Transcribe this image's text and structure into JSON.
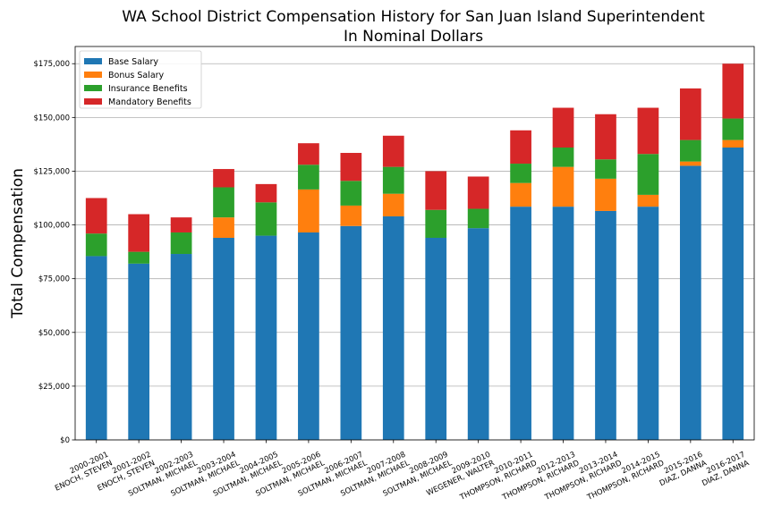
{
  "chart_data": {
    "type": "bar",
    "stacked": true,
    "title": "WA School District Compensation History for San Juan Island Superintendent",
    "subtitle": "In Nominal Dollars",
    "ylabel": "Total Compensation",
    "xlabel": "",
    "ylim": [
      0,
      183000
    ],
    "yticks": [
      0,
      25000,
      50000,
      75000,
      100000,
      125000,
      150000,
      175000
    ],
    "ytick_labels": [
      "$0",
      "$25,000",
      "$50,000",
      "$75,000",
      "$100,000",
      "$125,000",
      "$150,000",
      "$175,000"
    ],
    "grid": "horizontal",
    "legend_position": "top-left",
    "categories": [
      [
        "2000-2001",
        "ENOCH, STEVEN"
      ],
      [
        "2001-2002",
        "ENOCH, STEVEN"
      ],
      [
        "2002-2003",
        "SOLTMAN, MICHAEL"
      ],
      [
        "2003-2004",
        "SOLTMAN, MICHAEL"
      ],
      [
        "2004-2005",
        "SOLTMAN, MICHAEL"
      ],
      [
        "2005-2006",
        "SOLTMAN, MICHAEL"
      ],
      [
        "2006-2007",
        "SOLTMAN, MICHAEL"
      ],
      [
        "2007-2008",
        "SOLTMAN, MICHAEL"
      ],
      [
        "2008-2009",
        "SOLTMAN, MICHAEL"
      ],
      [
        "2009-2010",
        "WEGENER, WALTER"
      ],
      [
        "2010-2011",
        "THOMPSON, RICHARD"
      ],
      [
        "2012-2013",
        "THOMPSON, RICHARD"
      ],
      [
        "2013-2014",
        "THOMPSON, RICHARD"
      ],
      [
        "2014-2015",
        "THOMPSON, RICHARD"
      ],
      [
        "2015-2016",
        "DIAZ, DANNA"
      ],
      [
        "2016-2017",
        "DIAZ, DANNA"
      ]
    ],
    "series": [
      {
        "name": "Base Salary",
        "color": "#1f77b4",
        "values": [
          85500,
          82000,
          86500,
          94000,
          95000,
          96500,
          99500,
          104000,
          94000,
          98500,
          108500,
          108500,
          106500,
          108500,
          127500,
          136000
        ]
      },
      {
        "name": "Bonus Salary",
        "color": "#ff7f0e",
        "values": [
          0,
          0,
          0,
          9500,
          0,
          20000,
          9500,
          10500,
          0,
          0,
          11000,
          18500,
          15000,
          5500,
          2000,
          3500
        ]
      },
      {
        "name": "Insurance Benefits",
        "color": "#2ca02c",
        "values": [
          10500,
          5500,
          10000,
          14000,
          15500,
          11500,
          11500,
          12500,
          13000,
          9000,
          9000,
          9000,
          9000,
          19000,
          10000,
          10000
        ]
      },
      {
        "name": "Mandatory Benefits",
        "color": "#d62728",
        "values": [
          16500,
          17500,
          7000,
          8500,
          8500,
          10000,
          13000,
          14500,
          18000,
          15000,
          15500,
          18500,
          21000,
          21500,
          24000,
          25500
        ]
      }
    ]
  }
}
